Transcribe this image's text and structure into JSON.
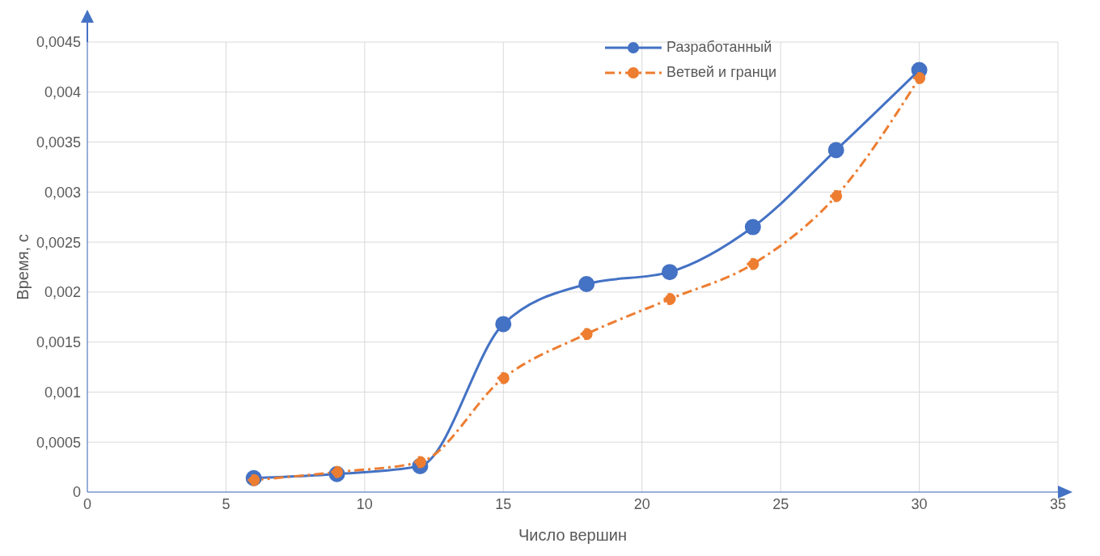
{
  "chart_data": {
    "type": "line",
    "xlabel": "Число вершин",
    "ylabel": "Время, с",
    "x": [
      6,
      9,
      12,
      15,
      18,
      21,
      24,
      27,
      30
    ],
    "series": [
      {
        "name": "Разработанный",
        "color": "#4472c4",
        "line_style": "solid",
        "values": [
          0.00014,
          0.00018,
          0.00026,
          0.00168,
          0.00208,
          0.0022,
          0.00265,
          0.00342,
          0.00422
        ]
      },
      {
        "name": "Ветвей и гранци",
        "color": "#ed7d31",
        "line_style": "dashed",
        "values": [
          0.00012,
          0.0002,
          0.0003,
          0.00114,
          0.00158,
          0.00193,
          0.00228,
          0.00296,
          0.00414
        ]
      }
    ],
    "xlim": [
      0,
      35
    ],
    "xticks": [
      0,
      5,
      10,
      15,
      20,
      25,
      30,
      35
    ],
    "ylim": [
      0,
      0.0045
    ],
    "yticks": [
      0,
      {
        "value": 0.0005,
        "label": "0,0005"
      },
      {
        "value": 0.001,
        "label": "0,001"
      },
      {
        "value": 0.0015,
        "label": "0,0015"
      },
      {
        "value": 0.002,
        "label": "0,002"
      },
      {
        "value": 0.0025,
        "label": "0,0025"
      },
      {
        "value": 0.003,
        "label": "0,003"
      },
      {
        "value": 0.0035,
        "label": "0,0035"
      },
      {
        "value": 0.004,
        "label": "0,004"
      },
      {
        "value": 0.0045,
        "label": "0,0045"
      }
    ],
    "grid": true,
    "legend": "top right",
    "marker": "circle"
  }
}
